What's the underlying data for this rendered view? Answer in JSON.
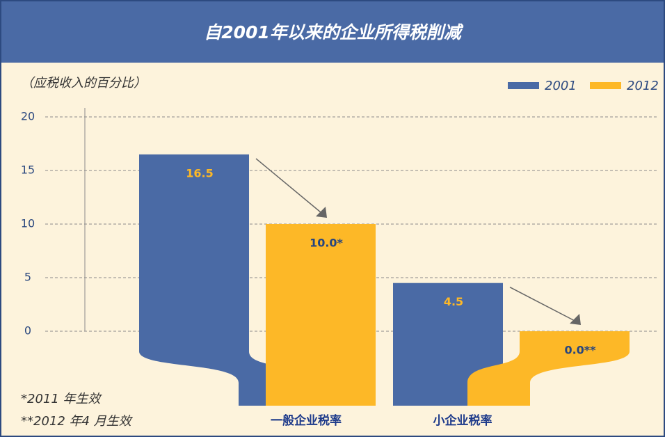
{
  "chart_data": {
    "type": "bar",
    "title": "自2001年以来的企业所得税削减",
    "subtitle": "（应税收入的百分比）",
    "categories": [
      "一般企业税率",
      "小企业税率"
    ],
    "series": [
      {
        "name": "2001",
        "color": "#4a6aa5",
        "values": [
          16.5,
          4.5
        ],
        "value_labels": [
          "16.5",
          "4.5"
        ]
      },
      {
        "name": "2012",
        "color": "#fdb827",
        "values": [
          10.0,
          0.0
        ],
        "value_labels": [
          "10.0*",
          "0.0**"
        ]
      }
    ],
    "ylim": [
      0,
      20
    ],
    "yticks": [
      0,
      5,
      10,
      15,
      20
    ],
    "grid": true,
    "legend": "top-right",
    "annotations": [
      "*2011 年生效",
      "**2012 年4 月生效"
    ]
  }
}
